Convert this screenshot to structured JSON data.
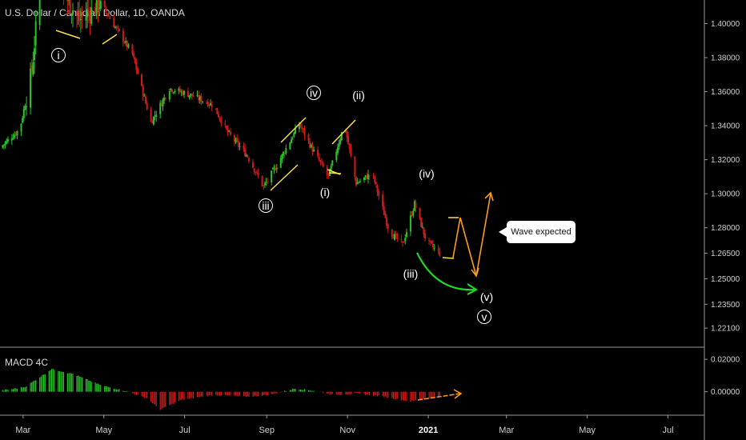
{
  "header": {
    "symbol": "U.S. Dollar / Canadian Dollar, 1D, OANDA"
  },
  "macd": {
    "label": "MACD 4C"
  },
  "callout": {
    "text": "Wave expected"
  },
  "colors": {
    "up": "#27c427",
    "down": "#d11a1a",
    "yellow": "#ffe14a",
    "orange": "#ff9a1f",
    "green_arrow": "#1fe01f"
  },
  "chart_data": [
    {
      "type": "candlestick",
      "title": "U.S. Dollar / Canadian Dollar, 1D, OANDA",
      "y_ticks": [
        "1.40000",
        "1.38000",
        "1.36000",
        "1.34000",
        "1.32000",
        "1.30000",
        "1.28000",
        "1.26500",
        "1.25000",
        "1.23500",
        "1.22100"
      ],
      "x_ticks": [
        "Mar",
        "May",
        "Jul",
        "Sep",
        "Nov",
        "2021",
        "Mar",
        "May",
        "Jul"
      ],
      "bold_x_tick": "2021",
      "wave_labels": [
        "ⓘ",
        "ⓘⓘⓘ",
        "ⓘⓥ",
        "(i)",
        "(ii)",
        "(iii)",
        "(iv)",
        "(v)",
        "ⓥ"
      ],
      "price_path": [
        {
          "x": "2020-02-15",
          "y": 1.327
        },
        {
          "x": "2020-03-01",
          "y": 1.338
        },
        {
          "x": "2020-03-10",
          "y": 1.372
        },
        {
          "x": "2020-03-19",
          "y": 1.445
        },
        {
          "x": "2020-04-01",
          "y": 1.42
        },
        {
          "x": "2020-04-15",
          "y": 1.402
        },
        {
          "x": "2020-05-01",
          "y": 1.412
        },
        {
          "x": "2020-05-12",
          "y": 1.398
        },
        {
          "x": "2020-05-25",
          "y": 1.382
        },
        {
          "x": "2020-06-08",
          "y": 1.342
        },
        {
          "x": "2020-06-22",
          "y": 1.362
        },
        {
          "x": "2020-07-08",
          "y": 1.358
        },
        {
          "x": "2020-07-25",
          "y": 1.352
        },
        {
          "x": "2020-08-05",
          "y": 1.336
        },
        {
          "x": "2020-08-20",
          "y": 1.322
        },
        {
          "x": "2020-09-01",
          "y": 1.304
        },
        {
          "x": "2020-09-12",
          "y": 1.318
        },
        {
          "x": "2020-09-28",
          "y": 1.341
        },
        {
          "x": "2020-10-08",
          "y": 1.326
        },
        {
          "x": "2020-10-20",
          "y": 1.31
        },
        {
          "x": "2020-11-01",
          "y": 1.341
        },
        {
          "x": "2020-11-10",
          "y": 1.306
        },
        {
          "x": "2020-11-22",
          "y": 1.312
        },
        {
          "x": "2020-12-05",
          "y": 1.278
        },
        {
          "x": "2020-12-15",
          "y": 1.27
        },
        {
          "x": "2020-12-24",
          "y": 1.294
        },
        {
          "x": "2021-01-02",
          "y": 1.272
        },
        {
          "x": "2021-01-12",
          "y": 1.265
        }
      ],
      "ylim": [
        1.214,
        1.412
      ]
    },
    {
      "type": "bar",
      "title": "MACD 4C",
      "y_ticks": [
        "0.02000",
        "0.00000"
      ],
      "ylim": [
        -0.012,
        0.025
      ],
      "histogram_path": [
        {
          "x": "2020-02-15",
          "y": 0.0005
        },
        {
          "x": "2020-03-05",
          "y": 0.003
        },
        {
          "x": "2020-03-25",
          "y": 0.014
        },
        {
          "x": "2020-04-10",
          "y": 0.011
        },
        {
          "x": "2020-05-01",
          "y": 0.004
        },
        {
          "x": "2020-05-20",
          "y": 0.0005
        },
        {
          "x": "2020-06-05",
          "y": -0.004
        },
        {
          "x": "2020-06-15",
          "y": -0.011
        },
        {
          "x": "2020-07-01",
          "y": -0.005
        },
        {
          "x": "2020-07-25",
          "y": -0.002
        },
        {
          "x": "2020-08-20",
          "y": -0.003
        },
        {
          "x": "2020-09-05",
          "y": -0.002
        },
        {
          "x": "2020-09-25",
          "y": 0.002
        },
        {
          "x": "2020-10-10",
          "y": 0.0005
        },
        {
          "x": "2020-10-25",
          "y": -0.002
        },
        {
          "x": "2020-11-10",
          "y": -0.001
        },
        {
          "x": "2020-12-01",
          "y": -0.003
        },
        {
          "x": "2020-12-20",
          "y": -0.006
        },
        {
          "x": "2021-01-12",
          "y": -0.003
        }
      ]
    }
  ]
}
